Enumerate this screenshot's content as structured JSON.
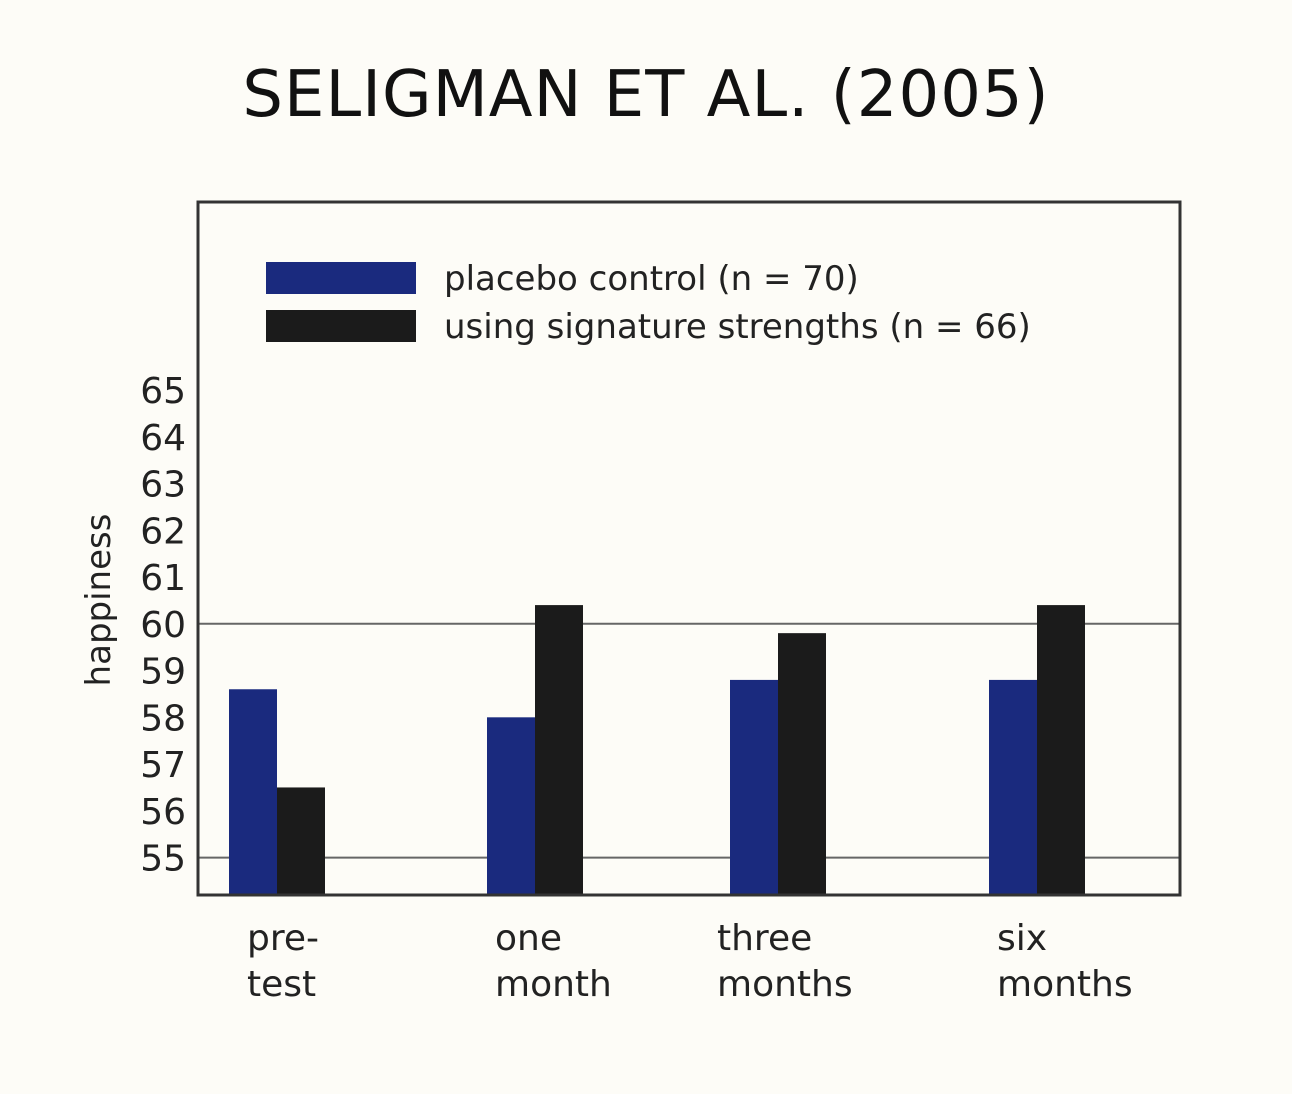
{
  "title": "SELIGMAN ET AL. (2005)",
  "chart_data": {
    "type": "bar",
    "categories": [
      [
        "pre-",
        "test"
      ],
      [
        "one",
        "month"
      ],
      [
        "three",
        "months"
      ],
      [
        "six",
        "months"
      ]
    ],
    "series": [
      {
        "name": "placebo control (n = 70)",
        "color": "#1a2a7e",
        "values": [
          58.6,
          58.0,
          58.8,
          58.8
        ]
      },
      {
        "name": "using signature strengths (n = 66)",
        "color": "#1b1b1b",
        "values": [
          56.5,
          60.4,
          59.8,
          60.4
        ]
      }
    ],
    "ylabel": "happiness",
    "yticks": [
      55,
      56,
      57,
      58,
      59,
      60,
      61,
      62,
      63,
      64,
      65
    ],
    "ylim": [
      54.2,
      65
    ],
    "reference_lines": [
      55,
      60
    ],
    "legend_position": "top-left"
  }
}
